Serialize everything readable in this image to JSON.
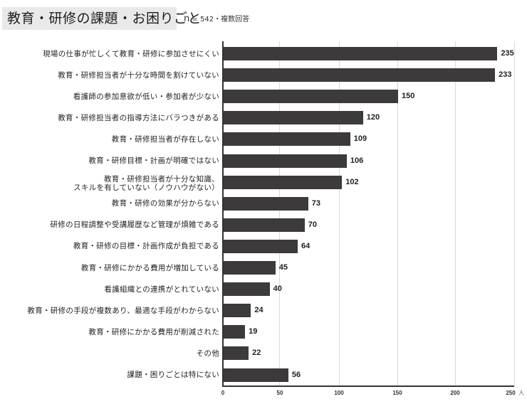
{
  "header": {
    "title": "教育・研修の課題・お困りごと",
    "subtitle_n": "n",
    "subtitle_rest": " = 542・複数回答"
  },
  "colors": {
    "bar": "#3c3a3b",
    "title_bg": "#e9e9e9",
    "grid": "#d9d9d9"
  },
  "chart_data": {
    "type": "bar",
    "orientation": "horizontal",
    "title": "教育・研修の課題・お困りごと",
    "subtitle": "n = 542・複数回答",
    "xlabel": "人",
    "ylabel": "",
    "xlim": [
      0,
      250
    ],
    "xticks": [
      0,
      50,
      100,
      150,
      200,
      250
    ],
    "grid": true,
    "categories": [
      "現場の仕事が忙しくて教育・研修に参加させにくい",
      "教育・研修担当者が十分な時間を割けていない",
      "看護師の参加意欲が低い・参加者が少ない",
      "教育・研修担当者の指導方法にバラつきがある",
      "教育・研修担当者が存在しない",
      "教育・研修目標・計画が明確ではない",
      "教育・研修担当者が十分な知識、スキルを有していない（ノウハウがない）",
      "教育・研修の効果が分からない",
      "研修の日程調整や受講履歴など管理が煩雑である",
      "教育・研修の目標・計画作成が負担である",
      "教育・研修にかかる費用が増加している",
      "看護組織との連携がとれていない",
      "教育・研修の手段が複数あり、最適な手段がわからない",
      "教育・研修にかかる費用が削減された",
      "その他",
      "課題・困りごとは特にない"
    ],
    "values": [
      235,
      233,
      150,
      120,
      109,
      106,
      102,
      73,
      70,
      64,
      45,
      40,
      24,
      19,
      22,
      56
    ]
  },
  "rows": [
    {
      "label": "現場の仕事が忙しくて教育・研修に参加させにくい",
      "value": "235"
    },
    {
      "label": "教育・研修担当者が十分な時間を割けていない",
      "value": "233"
    },
    {
      "label": "看護師の参加意欲が低い・参加者が少ない",
      "value": "150"
    },
    {
      "label": "教育・研修担当者の指導方法にバラつきがある",
      "value": "120"
    },
    {
      "label": "教育・研修担当者が存在しない",
      "value": "109"
    },
    {
      "label": "教育・研修目標・計画が明確ではない",
      "value": "106"
    },
    {
      "label": "教育・研修担当者が十分な知識、",
      "label2": "スキルを有していない（ノウハウがない）",
      "value": "102"
    },
    {
      "label": "教育・研修の効果が分からない",
      "value": "73"
    },
    {
      "label": "研修の日程調整や受講履歴など管理が煩雑である",
      "value": "70"
    },
    {
      "label": "教育・研修の目標・計画作成が負担である",
      "value": "64"
    },
    {
      "label": "教育・研修にかかる費用が増加している",
      "value": "45"
    },
    {
      "label": "看護組織との連携がとれていない",
      "value": "40"
    },
    {
      "label": "教育・研修の手段が複数あり、最適な手段がわからない",
      "value": "24"
    },
    {
      "label": "教育・研修にかかる費用が削減された",
      "value": "19"
    },
    {
      "label": "その他",
      "value": "22"
    },
    {
      "label": "課題・困りごとは特にない",
      "value": "56"
    }
  ],
  "axis": {
    "ticks": [
      "0",
      "50",
      "100",
      "150",
      "200",
      "250"
    ],
    "unit": "人"
  }
}
